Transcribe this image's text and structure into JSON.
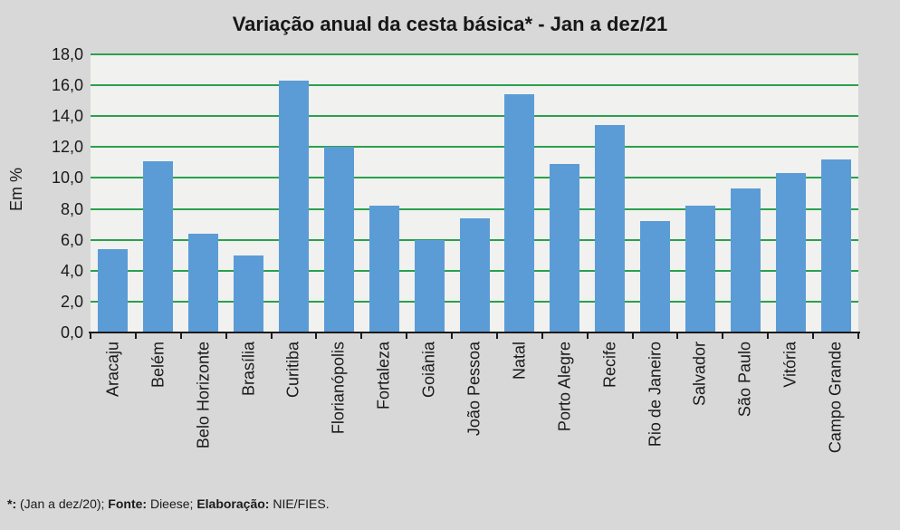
{
  "title": "Variação anual da cesta básica* - Jan a dez/21",
  "footer_parts": [
    {
      "text": "*:",
      "bold": true
    },
    {
      "text": " (Jan a dez/20); ",
      "bold": false
    },
    {
      "text": "Fonte:",
      "bold": true
    },
    {
      "text": " Dieese; ",
      "bold": false
    },
    {
      "text": "Elaboração:",
      "bold": true
    },
    {
      "text": " NIE/FIES.",
      "bold": false
    }
  ],
  "colors": {
    "bar": "#5b9cd6",
    "gridline": "#2aa14d",
    "plot_background": "#f1f1ef",
    "page_background": "#d8d8d8",
    "axis": "#1a1a1a"
  },
  "chart_data": {
    "type": "bar",
    "title": "Variação anual da cesta básica* - Jan a dez/21",
    "categories": [
      "Aracaju",
      "Belém",
      "Belo Horizonte",
      "Brasília",
      "Curitiba",
      "Florianópolis",
      "Fortaleza",
      "Goiânia",
      "João Pessoa",
      "Natal",
      "Porto Alegre",
      "Recife",
      "Rio de Janeiro",
      "Salvador",
      "São Paulo",
      "Vitória",
      "Campo Grande"
    ],
    "values": [
      5.4,
      11.1,
      6.4,
      5.0,
      16.3,
      12.0,
      8.2,
      6.0,
      7.4,
      15.4,
      10.9,
      13.4,
      7.2,
      8.2,
      9.3,
      10.3,
      11.2
    ],
    "xlabel": "",
    "ylabel": "Em %",
    "ylim": [
      0,
      18
    ],
    "ytick_step": 2,
    "ytick_labels": [
      "0,0",
      "2,0",
      "4,0",
      "6,0",
      "8,0",
      "10,0",
      "12,0",
      "14,0",
      "16,0",
      "18,0"
    ],
    "grid": true,
    "grid_orientation": "horizontal",
    "legend": false,
    "x_label_rotation": -90
  }
}
